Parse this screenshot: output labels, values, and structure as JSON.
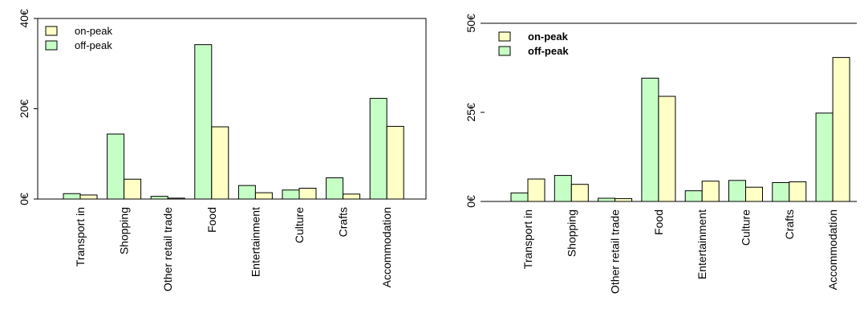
{
  "colors": {
    "on_peak": "#ffffc6",
    "off_peak": "#c6ffc6",
    "outline": "#000000",
    "background": "#ffffff"
  },
  "chart_data": [
    {
      "type": "bar",
      "categories": [
        "Transport in",
        "Shopping",
        "Other retail trade",
        "Food",
        "Entertainment",
        "Culture",
        "Crafts",
        "Accommodation"
      ],
      "series": [
        {
          "name": "off-peak",
          "values": [
            1.2,
            14.4,
            0.6,
            34.2,
            3.0,
            2.0,
            4.7,
            22.3
          ]
        },
        {
          "name": "on-peak",
          "values": [
            0.9,
            4.4,
            0.2,
            16.0,
            1.4,
            2.4,
            1.1,
            16.1
          ]
        }
      ],
      "yticks": [
        {
          "value": 0,
          "label": "0€"
        },
        {
          "value": 20,
          "label": "20€"
        },
        {
          "value": 40,
          "label": "40€"
        }
      ],
      "ylim": [
        0,
        40
      ],
      "legend": {
        "position": "top-left",
        "on_label": "on-peak",
        "off_label": "off-peak",
        "bold": false
      },
      "frame": "box",
      "grid": false
    },
    {
      "type": "bar",
      "categories": [
        "Transport in",
        "Shopping",
        "Other retail trade",
        "Food",
        "Entertainment",
        "Culture",
        "Crafts",
        "Accommodation"
      ],
      "series": [
        {
          "name": "off-peak",
          "values": [
            2.4,
            7.3,
            0.9,
            34.6,
            3.0,
            5.9,
            5.3,
            24.8
          ]
        },
        {
          "name": "on-peak",
          "values": [
            6.3,
            4.8,
            0.8,
            29.5,
            5.7,
            4.0,
            5.5,
            40.4
          ]
        }
      ],
      "yticks": [
        {
          "value": 0,
          "label": "0€"
        },
        {
          "value": 25,
          "label": "25€"
        },
        {
          "value": 50,
          "label": "50€"
        }
      ],
      "ylim": [
        0,
        50
      ],
      "legend": {
        "position": "top-left",
        "on_label": "on-peak",
        "off_label": "off-peak",
        "bold": true
      },
      "frame": "open",
      "grid": false
    }
  ]
}
